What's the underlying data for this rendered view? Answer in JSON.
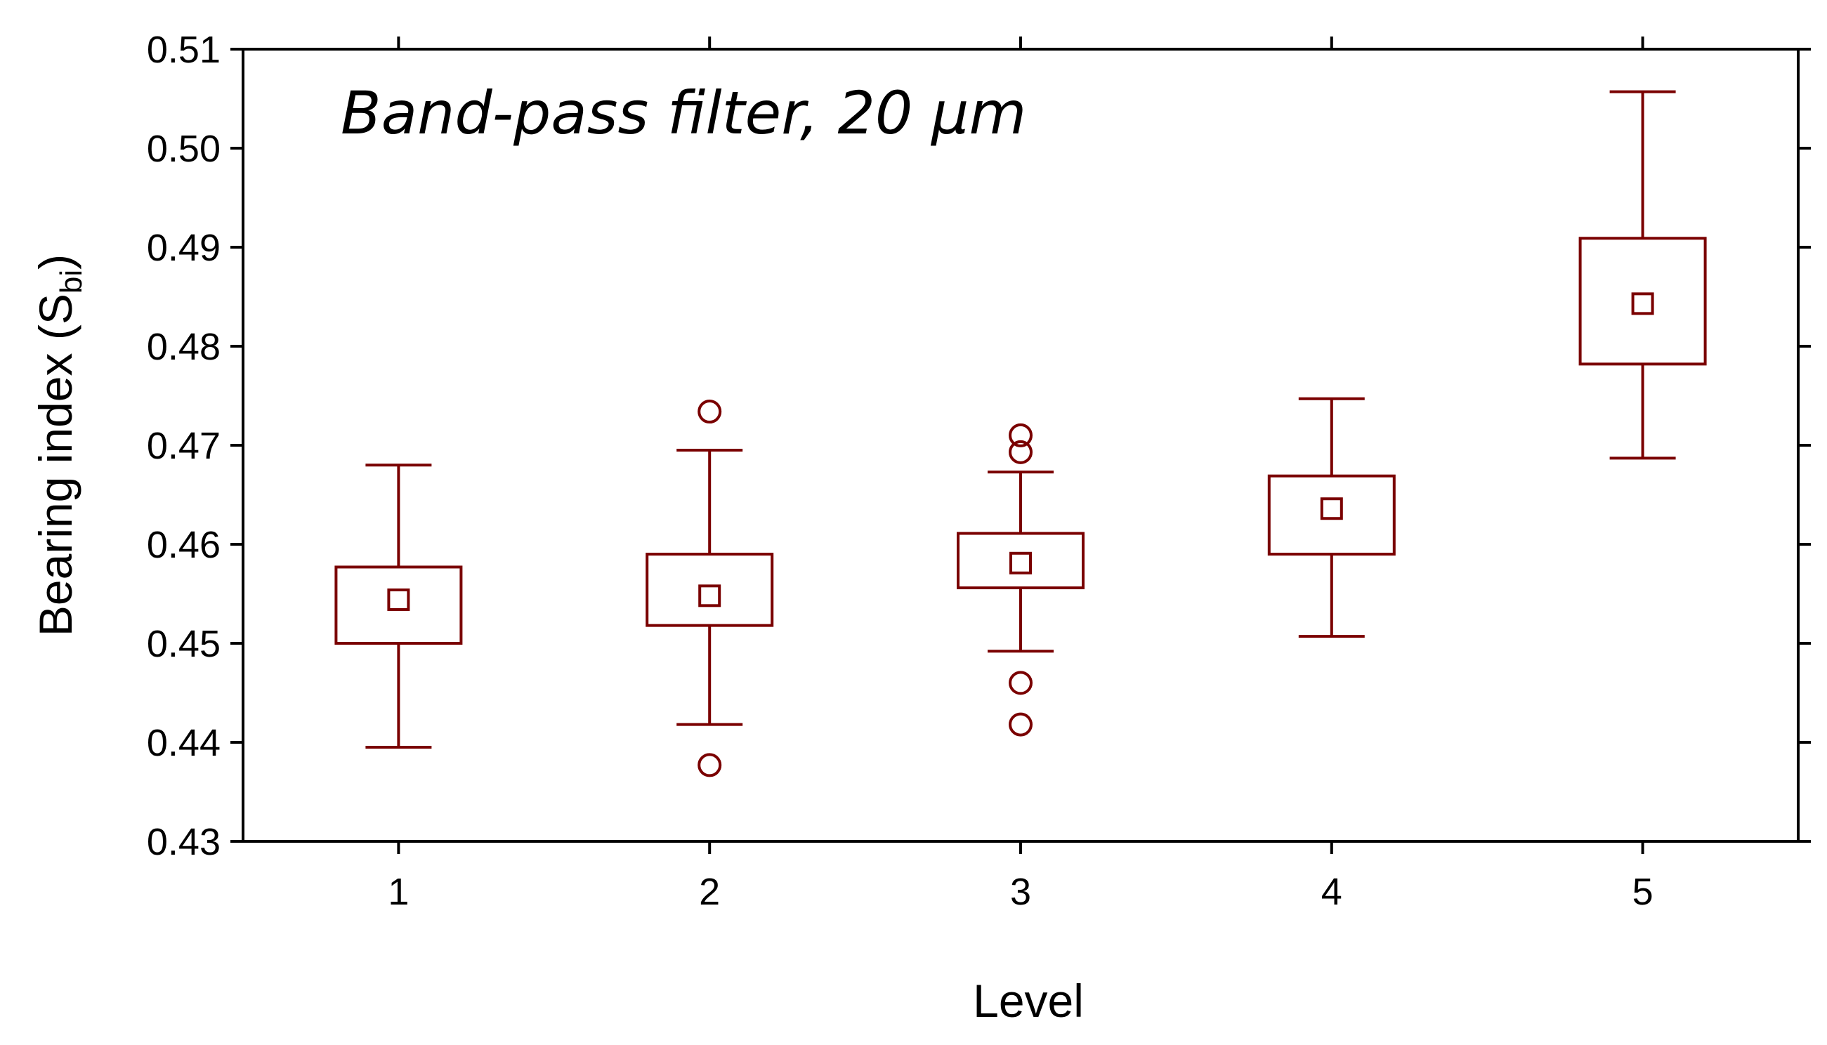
{
  "chart_data": {
    "type": "box",
    "title": "Band-pass filter, 20 μm",
    "xlabel": "Level",
    "ylabel": {
      "main": "Bearing index (S",
      "sub": "bi",
      "close": ")"
    },
    "categories": [
      "1",
      "2",
      "3",
      "4",
      "5"
    ],
    "ylim": [
      0.43,
      0.51
    ],
    "yticks": [
      "0.43",
      "0.44",
      "0.45",
      "0.46",
      "0.47",
      "0.48",
      "0.49",
      "0.50",
      "0.51"
    ],
    "legend": "none",
    "grid": false,
    "color": "#7a0000",
    "boxes": [
      {
        "level": "1",
        "whisker_low": 0.4395,
        "q1": 0.45,
        "median": 0.4544,
        "q3": 0.4577,
        "whisker_high": 0.468,
        "outliers": []
      },
      {
        "level": "2",
        "whisker_low": 0.4418,
        "q1": 0.4518,
        "median": 0.4548,
        "q3": 0.459,
        "whisker_high": 0.4695,
        "outliers": [
          0.4377,
          0.4734
        ]
      },
      {
        "level": "3",
        "whisker_low": 0.4492,
        "q1": 0.4556,
        "median": 0.4581,
        "q3": 0.4611,
        "whisker_high": 0.4673,
        "outliers": [
          0.4418,
          0.446,
          0.4693,
          0.471
        ]
      },
      {
        "level": "4",
        "whisker_low": 0.4507,
        "q1": 0.459,
        "median": 0.4636,
        "q3": 0.4669,
        "whisker_high": 0.4747,
        "outliers": []
      },
      {
        "level": "5",
        "whisker_low": 0.4687,
        "q1": 0.4782,
        "median": 0.4843,
        "q3": 0.4909,
        "whisker_high": 0.5057,
        "outliers": []
      }
    ]
  }
}
